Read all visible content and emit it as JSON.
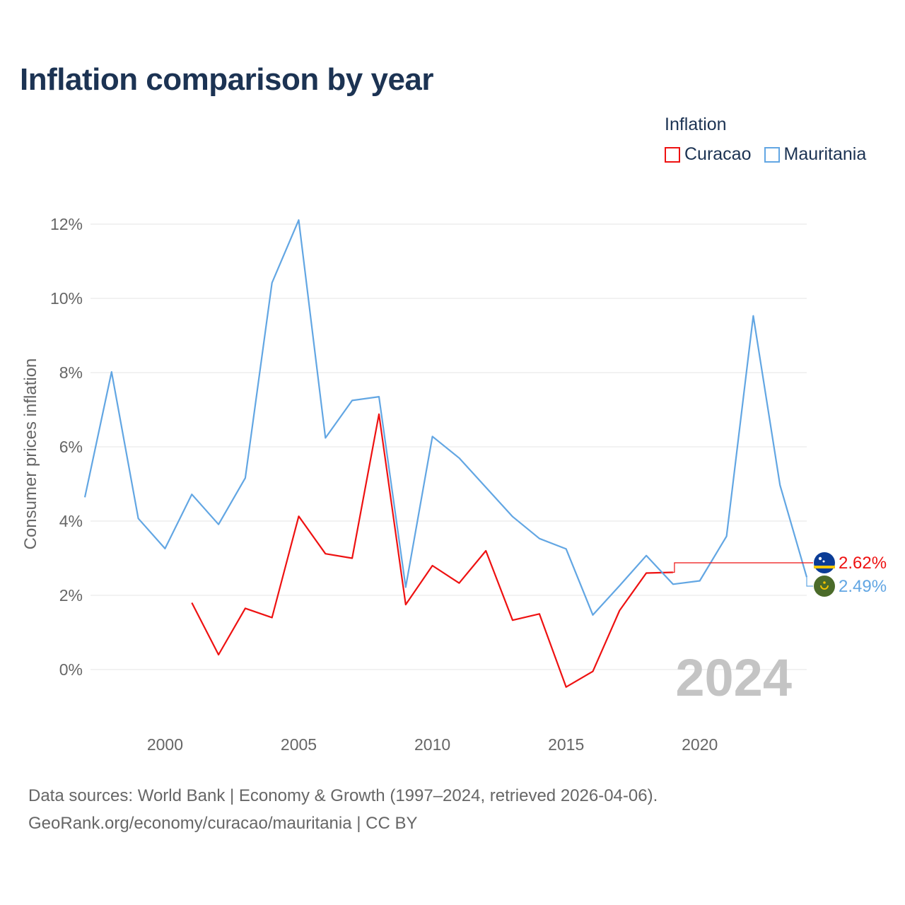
{
  "title": "Inflation comparison by year",
  "legend": {
    "title": "Inflation",
    "items": [
      {
        "label": "Curacao",
        "color": "#ee1111"
      },
      {
        "label": "Mauritania",
        "color": "#62a6e3"
      }
    ]
  },
  "footer": {
    "line1": "Data sources: World Bank | Economy & Growth (1997–2024, retrieved 2026-04-06).",
    "line2": "GeoRank.org/economy/curacao/mauritania | CC BY"
  },
  "chart_data": {
    "type": "line",
    "title": "Inflation comparison by year",
    "xlabel": "",
    "ylabel": "Consumer prices inflation",
    "xlim": [
      1997,
      2024
    ],
    "ylim": [
      -1.5,
      12.5
    ],
    "yticks": [
      0,
      2,
      4,
      6,
      8,
      10,
      12
    ],
    "ytick_labels": [
      "0%",
      "2%",
      "4%",
      "6%",
      "8%",
      "10%",
      "12%"
    ],
    "xticks": [
      2000,
      2005,
      2010,
      2015,
      2020
    ],
    "xtick_labels": [
      "2000",
      "2005",
      "2010",
      "2015",
      "2020"
    ],
    "grid": true,
    "year_label": "2024",
    "series": [
      {
        "name": "Curacao",
        "color": "#ee1111",
        "end_label": "2.62%",
        "flag": "curacao-flag-icon",
        "x": [
          2001,
          2002,
          2003,
          2004,
          2005,
          2006,
          2007,
          2008,
          2009,
          2010,
          2011,
          2012,
          2013,
          2014,
          2015,
          2016,
          2017,
          2018,
          2019
        ],
        "values": [
          1.8,
          0.4,
          1.65,
          1.4,
          4.13,
          3.12,
          3.0,
          6.88,
          1.75,
          2.8,
          2.33,
          3.2,
          1.33,
          1.5,
          -0.47,
          -0.05,
          1.59,
          2.6,
          2.62
        ]
      },
      {
        "name": "Mauritania",
        "color": "#62a6e3",
        "end_label": "2.49%",
        "flag": "mauritania-flag-icon",
        "x": [
          1997,
          1998,
          1999,
          2000,
          2001,
          2002,
          2003,
          2004,
          2005,
          2006,
          2007,
          2008,
          2009,
          2010,
          2011,
          2012,
          2013,
          2014,
          2015,
          2016,
          2017,
          2018,
          2019,
          2020,
          2021,
          2022,
          2023,
          2024
        ],
        "values": [
          4.64,
          8.02,
          4.07,
          3.26,
          4.72,
          3.91,
          5.16,
          10.42,
          12.11,
          6.24,
          7.25,
          7.35,
          2.22,
          6.28,
          5.7,
          4.91,
          4.12,
          3.53,
          3.25,
          1.47,
          2.26,
          3.07,
          2.3,
          2.39,
          3.59,
          9.53,
          4.97,
          2.49
        ]
      }
    ]
  }
}
